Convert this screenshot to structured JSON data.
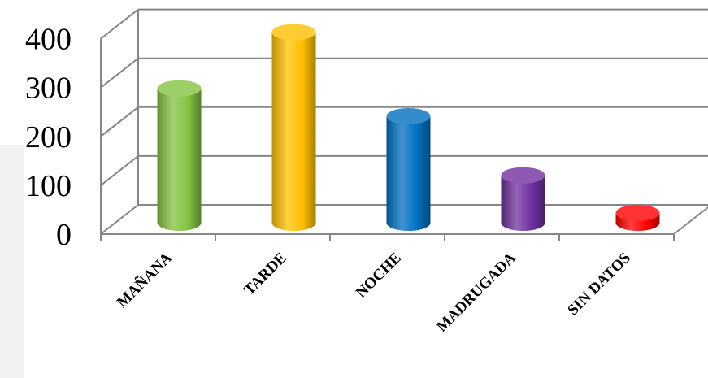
{
  "chart_data": {
    "type": "bar",
    "categories": [
      "MAÑANA",
      "TARDE",
      "NOCHE",
      "MADRUGADA",
      "SIN DATOS"
    ],
    "values": [
      275,
      390,
      218,
      97,
      20
    ],
    "ylim": [
      0,
      400
    ],
    "yticks": [
      0,
      100,
      200,
      300,
      400
    ],
    "grid": true,
    "legend": "none",
    "colors": {
      "bars": [
        "#84c341",
        "#ffc000",
        "#0070c0",
        "#7030a0",
        "#ff0000"
      ],
      "grid": "#868686",
      "background": "#ffffff"
    }
  }
}
